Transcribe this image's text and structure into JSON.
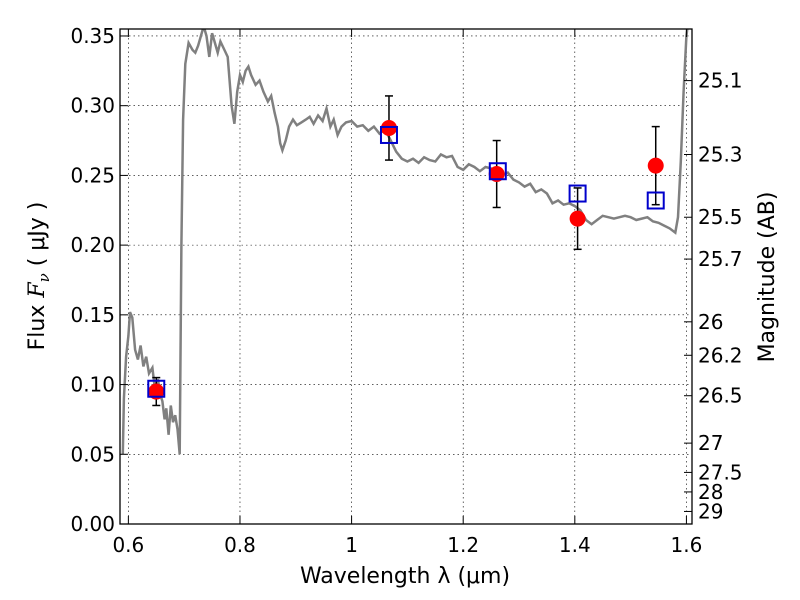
{
  "chart_data": {
    "type": "scatter",
    "title": "",
    "xlabel": "Wavelength  λ (μm)",
    "ylabel_parts": {
      "prefix": "Flux  ",
      "symbol": "F",
      "subscript": "ν",
      "unit": "  ( μJy )"
    },
    "y2label": "Magnitude (AB)",
    "xlim": [
      0.585,
      1.61
    ],
    "ylim": [
      0.0,
      0.355
    ],
    "grid": true,
    "x_ticks": [
      {
        "value": 0.6,
        "label": "0.6"
      },
      {
        "value": 0.8,
        "label": "0.8"
      },
      {
        "value": 1.0,
        "label": "1"
      },
      {
        "value": 1.2,
        "label": "1.2"
      },
      {
        "value": 1.4,
        "label": "1.4"
      },
      {
        "value": 1.6,
        "label": "1.6"
      }
    ],
    "y_ticks": [
      {
        "value": 0.0,
        "label": "0.00"
      },
      {
        "value": 0.05,
        "label": "0.05"
      },
      {
        "value": 0.1,
        "label": "0.10"
      },
      {
        "value": 0.15,
        "label": "0.15"
      },
      {
        "value": 0.2,
        "label": "0.20"
      },
      {
        "value": 0.25,
        "label": "0.25"
      },
      {
        "value": 0.3,
        "label": "0.30"
      },
      {
        "value": 0.35,
        "label": "0.35"
      }
    ],
    "y2_ticks": [
      {
        "flux": 0.318,
        "label": "25.1"
      },
      {
        "flux": 0.265,
        "label": "25.3"
      },
      {
        "flux": 0.22,
        "label": "25.5"
      },
      {
        "flux": 0.19,
        "label": "25.7"
      },
      {
        "flux": 0.145,
        "label": "26"
      },
      {
        "flux": 0.121,
        "label": "26.2"
      },
      {
        "flux": 0.092,
        "label": "26.5"
      },
      {
        "flux": 0.058,
        "label": "27"
      },
      {
        "flux": 0.037,
        "label": "27.5"
      },
      {
        "flux": 0.023,
        "label": "28"
      },
      {
        "flux": 0.009,
        "label": "29"
      }
    ],
    "model_spectrum": {
      "color": "#808080",
      "points": [
        [
          0.59,
          0.05
        ],
        [
          0.592,
          0.09
        ],
        [
          0.596,
          0.12
        ],
        [
          0.6,
          0.135
        ],
        [
          0.603,
          0.152
        ],
        [
          0.607,
          0.148
        ],
        [
          0.612,
          0.125
        ],
        [
          0.617,
          0.118
        ],
        [
          0.622,
          0.128
        ],
        [
          0.627,
          0.113
        ],
        [
          0.632,
          0.12
        ],
        [
          0.637,
          0.108
        ],
        [
          0.643,
          0.112
        ],
        [
          0.648,
          0.095
        ],
        [
          0.653,
          0.104
        ],
        [
          0.657,
          0.093
        ],
        [
          0.661,
          0.088
        ],
        [
          0.665,
          0.075
        ],
        [
          0.668,
          0.083
        ],
        [
          0.672,
          0.064
        ],
        [
          0.676,
          0.085
        ],
        [
          0.68,
          0.073
        ],
        [
          0.684,
          0.078
        ],
        [
          0.688,
          0.068
        ],
        [
          0.692,
          0.05
        ],
        [
          0.695,
          0.2
        ],
        [
          0.698,
          0.29
        ],
        [
          0.702,
          0.33
        ],
        [
          0.708,
          0.345
        ],
        [
          0.715,
          0.34
        ],
        [
          0.72,
          0.338
        ],
        [
          0.725,
          0.343
        ],
        [
          0.73,
          0.35
        ],
        [
          0.735,
          0.357
        ],
        [
          0.74,
          0.35
        ],
        [
          0.745,
          0.335
        ],
        [
          0.75,
          0.352
        ],
        [
          0.755,
          0.345
        ],
        [
          0.76,
          0.338
        ],
        [
          0.765,
          0.346
        ],
        [
          0.772,
          0.34
        ],
        [
          0.778,
          0.335
        ],
        [
          0.785,
          0.3
        ],
        [
          0.79,
          0.287
        ],
        [
          0.795,
          0.31
        ],
        [
          0.8,
          0.322
        ],
        [
          0.805,
          0.317
        ],
        [
          0.81,
          0.325
        ],
        [
          0.815,
          0.328
        ],
        [
          0.82,
          0.322
        ],
        [
          0.828,
          0.315
        ],
        [
          0.835,
          0.318
        ],
        [
          0.842,
          0.31
        ],
        [
          0.85,
          0.303
        ],
        [
          0.856,
          0.307
        ],
        [
          0.862,
          0.295
        ],
        [
          0.868,
          0.285
        ],
        [
          0.872,
          0.273
        ],
        [
          0.876,
          0.268
        ],
        [
          0.882,
          0.275
        ],
        [
          0.888,
          0.285
        ],
        [
          0.895,
          0.29
        ],
        [
          0.902,
          0.286
        ],
        [
          0.91,
          0.288
        ],
        [
          0.918,
          0.29
        ],
        [
          0.925,
          0.292
        ],
        [
          0.932,
          0.287
        ],
        [
          0.94,
          0.293
        ],
        [
          0.948,
          0.289
        ],
        [
          0.955,
          0.298
        ],
        [
          0.962,
          0.285
        ],
        [
          0.968,
          0.29
        ],
        [
          0.975,
          0.279
        ],
        [
          0.982,
          0.285
        ],
        [
          0.99,
          0.288
        ],
        [
          1.0,
          0.289
        ],
        [
          1.01,
          0.285
        ],
        [
          1.02,
          0.286
        ],
        [
          1.03,
          0.282
        ],
        [
          1.04,
          0.285
        ],
        [
          1.05,
          0.28
        ],
        [
          1.06,
          0.283
        ],
        [
          1.07,
          0.275
        ],
        [
          1.08,
          0.267
        ],
        [
          1.09,
          0.262
        ],
        [
          1.1,
          0.26
        ],
        [
          1.11,
          0.262
        ],
        [
          1.12,
          0.259
        ],
        [
          1.13,
          0.263
        ],
        [
          1.14,
          0.261
        ],
        [
          1.15,
          0.26
        ],
        [
          1.16,
          0.265
        ],
        [
          1.17,
          0.263
        ],
        [
          1.18,
          0.264
        ],
        [
          1.19,
          0.256
        ],
        [
          1.2,
          0.254
        ],
        [
          1.21,
          0.258
        ],
        [
          1.22,
          0.256
        ],
        [
          1.23,
          0.253
        ],
        [
          1.24,
          0.256
        ],
        [
          1.25,
          0.255
        ],
        [
          1.26,
          0.252
        ],
        [
          1.27,
          0.25
        ],
        [
          1.28,
          0.252
        ],
        [
          1.29,
          0.247
        ],
        [
          1.3,
          0.245
        ],
        [
          1.31,
          0.242
        ],
        [
          1.32,
          0.244
        ],
        [
          1.33,
          0.238
        ],
        [
          1.34,
          0.24
        ],
        [
          1.35,
          0.237
        ],
        [
          1.36,
          0.23
        ],
        [
          1.37,
          0.232
        ],
        [
          1.38,
          0.229
        ],
        [
          1.39,
          0.23
        ],
        [
          1.4,
          0.228
        ],
        [
          1.41,
          0.225
        ],
        [
          1.42,
          0.218
        ],
        [
          1.43,
          0.215
        ],
        [
          1.44,
          0.218
        ],
        [
          1.45,
          0.221
        ],
        [
          1.46,
          0.22
        ],
        [
          1.47,
          0.219
        ],
        [
          1.48,
          0.22
        ],
        [
          1.49,
          0.221
        ],
        [
          1.5,
          0.22
        ],
        [
          1.51,
          0.218
        ],
        [
          1.52,
          0.219
        ],
        [
          1.53,
          0.22
        ],
        [
          1.54,
          0.217
        ],
        [
          1.55,
          0.216
        ],
        [
          1.56,
          0.214
        ],
        [
          1.57,
          0.212
        ],
        [
          1.58,
          0.209
        ],
        [
          1.585,
          0.22
        ],
        [
          1.59,
          0.26
        ],
        [
          1.595,
          0.31
        ],
        [
          1.6,
          0.35
        ],
        [
          1.603,
          0.36
        ]
      ]
    },
    "model_photometry": {
      "color": "#0000cc",
      "points": [
        {
          "x": 0.65,
          "y": 0.097
        },
        {
          "x": 1.067,
          "y": 0.279
        },
        {
          "x": 1.262,
          "y": 0.253
        },
        {
          "x": 1.405,
          "y": 0.237
        },
        {
          "x": 1.545,
          "y": 0.232
        }
      ]
    },
    "observed": {
      "color": "#ff0000",
      "points": [
        {
          "x": 0.65,
          "y": 0.095,
          "err": 0.01
        },
        {
          "x": 1.067,
          "y": 0.284,
          "err": 0.023
        },
        {
          "x": 1.26,
          "y": 0.251,
          "err": 0.024
        },
        {
          "x": 1.405,
          "y": 0.219,
          "err": 0.022
        },
        {
          "x": 1.545,
          "y": 0.257,
          "err": 0.028
        }
      ]
    }
  }
}
